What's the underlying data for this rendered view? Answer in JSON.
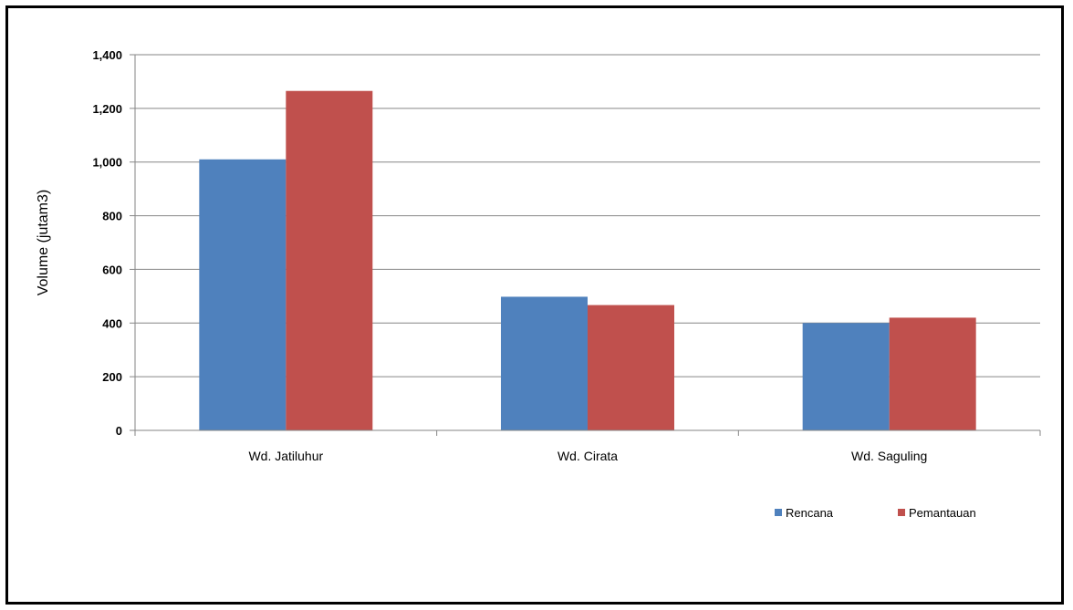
{
  "chart_data": {
    "type": "bar",
    "title": "",
    "xlabel": "",
    "ylabel": "Volume (jutam3)",
    "categories": [
      "Wd. Jatiluhur",
      "Wd. Cirata",
      "Wd. Saguling"
    ],
    "series": [
      {
        "name": "Rencana",
        "color": "#4f81bd",
        "values": [
          1010,
          498,
          400
        ]
      },
      {
        "name": "Pemantauan",
        "color": "#c0504d",
        "values": [
          1265,
          467,
          420
        ]
      }
    ],
    "ylim": [
      0,
      1400
    ],
    "yticks": [
      0,
      200,
      400,
      600,
      800,
      1000,
      1200,
      1400
    ],
    "ytick_labels": [
      "0",
      "200",
      "400",
      "600",
      "800",
      "1,000",
      "1,200",
      "1,400"
    ],
    "grid": true,
    "legend_position": "bottom-right"
  }
}
